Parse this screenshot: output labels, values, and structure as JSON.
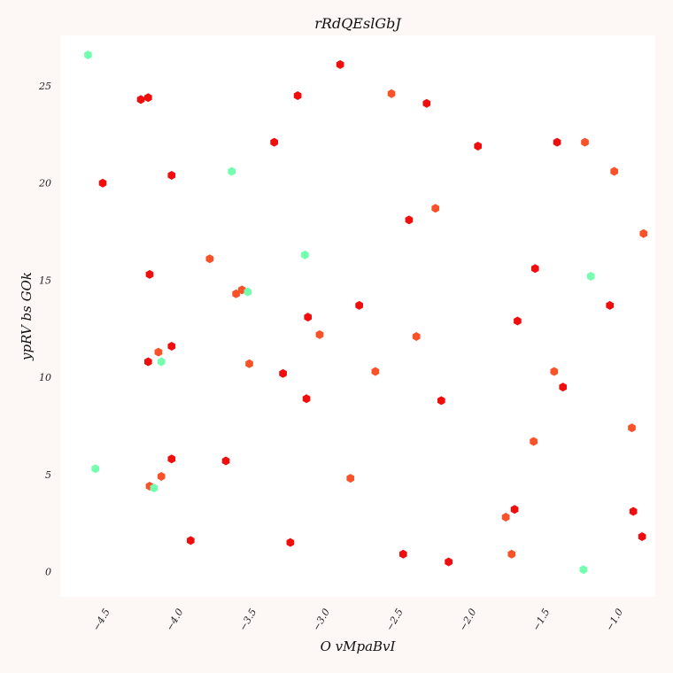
{
  "chart_data": {
    "type": "scatter",
    "title": "rRdQEslGbJ",
    "xlabel": "O vMpaBvI",
    "ylabel": "ypRV bs GOk",
    "xlim": [
      -4.84,
      -0.78
    ],
    "ylim": [
      -1.3,
      27.6
    ],
    "x_ticks": [
      {
        "value": -4.5,
        "label": "−4.5"
      },
      {
        "value": -4.0,
        "label": "−4.0"
      },
      {
        "value": -3.5,
        "label": "−3.5"
      },
      {
        "value": -3.0,
        "label": "−3.0"
      },
      {
        "value": -2.5,
        "label": "−2.5"
      },
      {
        "value": -2.0,
        "label": "−2.0"
      },
      {
        "value": -1.5,
        "label": "−1.5"
      },
      {
        "value": -1.0,
        "label": "−1.0"
      }
    ],
    "y_ticks": [
      {
        "value": 0,
        "label": "0"
      },
      {
        "value": 5,
        "label": "5"
      },
      {
        "value": 10,
        "label": "10"
      },
      {
        "value": 15,
        "label": "15"
      },
      {
        "value": 20,
        "label": "20"
      },
      {
        "value": 25,
        "label": "25"
      }
    ],
    "grid": false,
    "legend": "none",
    "colors": {
      "background": "#fdf7f6",
      "plot_area": "#ffffff",
      "red": "#f00d0d",
      "orange": "#fa5228",
      "mint": "#74ffb0"
    },
    "points": [
      {
        "x": -4.65,
        "y": 26.6,
        "color": "mint"
      },
      {
        "x": -4.29,
        "y": 24.3,
        "color": "red"
      },
      {
        "x": -4.24,
        "y": 24.4,
        "color": "red"
      },
      {
        "x": -4.55,
        "y": 20.0,
        "color": "red"
      },
      {
        "x": -4.08,
        "y": 20.4,
        "color": "red"
      },
      {
        "x": -3.67,
        "y": 20.6,
        "color": "mint"
      },
      {
        "x": -3.22,
        "y": 24.5,
        "color": "red"
      },
      {
        "x": -3.38,
        "y": 22.1,
        "color": "red"
      },
      {
        "x": -2.93,
        "y": 26.1,
        "color": "red"
      },
      {
        "x": -2.58,
        "y": 24.6,
        "color": "orange"
      },
      {
        "x": -2.34,
        "y": 24.1,
        "color": "red"
      },
      {
        "x": -2.46,
        "y": 18.1,
        "color": "red"
      },
      {
        "x": -2.28,
        "y": 18.7,
        "color": "orange"
      },
      {
        "x": -1.99,
        "y": 21.9,
        "color": "red"
      },
      {
        "x": -1.45,
        "y": 22.1,
        "color": "red"
      },
      {
        "x": -1.26,
        "y": 22.1,
        "color": "orange"
      },
      {
        "x": -1.06,
        "y": 20.6,
        "color": "orange"
      },
      {
        "x": -0.86,
        "y": 17.4,
        "color": "orange"
      },
      {
        "x": -3.82,
        "y": 16.1,
        "color": "orange"
      },
      {
        "x": -4.23,
        "y": 15.3,
        "color": "red"
      },
      {
        "x": -3.64,
        "y": 14.3,
        "color": "orange"
      },
      {
        "x": -3.6,
        "y": 14.5,
        "color": "orange"
      },
      {
        "x": -3.56,
        "y": 14.4,
        "color": "mint"
      },
      {
        "x": -3.17,
        "y": 16.3,
        "color": "mint"
      },
      {
        "x": -1.6,
        "y": 15.6,
        "color": "red"
      },
      {
        "x": -1.22,
        "y": 15.2,
        "color": "mint"
      },
      {
        "x": -1.09,
        "y": 13.7,
        "color": "red"
      },
      {
        "x": -2.8,
        "y": 13.7,
        "color": "red"
      },
      {
        "x": -3.15,
        "y": 13.1,
        "color": "red"
      },
      {
        "x": -3.07,
        "y": 12.2,
        "color": "orange"
      },
      {
        "x": -2.41,
        "y": 12.1,
        "color": "orange"
      },
      {
        "x": -1.72,
        "y": 12.9,
        "color": "red"
      },
      {
        "x": -4.08,
        "y": 11.6,
        "color": "red"
      },
      {
        "x": -4.17,
        "y": 11.3,
        "color": "orange"
      },
      {
        "x": -4.24,
        "y": 10.8,
        "color": "red"
      },
      {
        "x": -4.15,
        "y": 10.8,
        "color": "mint"
      },
      {
        "x": -3.55,
        "y": 10.7,
        "color": "orange"
      },
      {
        "x": -3.32,
        "y": 10.2,
        "color": "red"
      },
      {
        "x": -2.69,
        "y": 10.3,
        "color": "orange"
      },
      {
        "x": -3.16,
        "y": 8.9,
        "color": "red"
      },
      {
        "x": -2.24,
        "y": 8.8,
        "color": "red"
      },
      {
        "x": -1.47,
        "y": 10.3,
        "color": "orange"
      },
      {
        "x": -1.41,
        "y": 9.5,
        "color": "red"
      },
      {
        "x": -0.94,
        "y": 7.4,
        "color": "orange"
      },
      {
        "x": -1.61,
        "y": 6.7,
        "color": "orange"
      },
      {
        "x": -4.6,
        "y": 5.3,
        "color": "mint"
      },
      {
        "x": -4.08,
        "y": 5.8,
        "color": "red"
      },
      {
        "x": -3.71,
        "y": 5.7,
        "color": "red"
      },
      {
        "x": -4.15,
        "y": 4.9,
        "color": "orange"
      },
      {
        "x": -4.23,
        "y": 4.4,
        "color": "orange"
      },
      {
        "x": -4.2,
        "y": 4.3,
        "color": "mint"
      },
      {
        "x": -2.86,
        "y": 4.8,
        "color": "orange"
      },
      {
        "x": -1.74,
        "y": 3.2,
        "color": "red"
      },
      {
        "x": -1.8,
        "y": 2.8,
        "color": "orange"
      },
      {
        "x": -0.93,
        "y": 3.1,
        "color": "red"
      },
      {
        "x": -0.87,
        "y": 1.8,
        "color": "red"
      },
      {
        "x": -3.95,
        "y": 1.6,
        "color": "red"
      },
      {
        "x": -3.27,
        "y": 1.5,
        "color": "red"
      },
      {
        "x": -2.5,
        "y": 0.9,
        "color": "red"
      },
      {
        "x": -2.19,
        "y": 0.5,
        "color": "red"
      },
      {
        "x": -1.76,
        "y": 0.9,
        "color": "orange"
      },
      {
        "x": -1.27,
        "y": 0.1,
        "color": "mint"
      }
    ]
  }
}
